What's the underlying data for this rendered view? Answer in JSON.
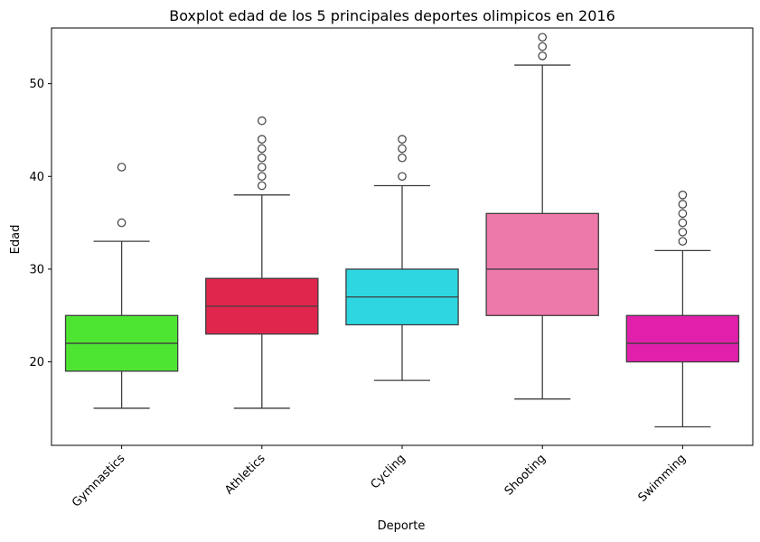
{
  "chart_data": {
    "type": "boxplot",
    "title": "Boxplot edad de los 5 principales deportes olimpicos en 2016",
    "xlabel": "Deporte",
    "ylabel": "Edad",
    "ylim": [
      11,
      56
    ],
    "yticks": [
      20,
      30,
      40,
      50
    ],
    "grid": false,
    "legend": "none",
    "categories": [
      "Gymnastics",
      "Athletics",
      "Cycling",
      "Shooting",
      "Swimming"
    ],
    "series": [
      {
        "category": "Gymnastics",
        "color": "#4ee532",
        "whisker_low": 15,
        "q1": 19,
        "median": 22,
        "q3": 25,
        "whisker_high": 33,
        "outliers": [
          35,
          41
        ]
      },
      {
        "category": "Athletics",
        "color": "#e1264d",
        "whisker_low": 15,
        "q1": 23,
        "median": 26,
        "q3": 29,
        "whisker_high": 38,
        "outliers": [
          39,
          40,
          41,
          42,
          43,
          44,
          46
        ]
      },
      {
        "category": "Cycling",
        "color": "#2dd6e0",
        "whisker_low": 18,
        "q1": 24,
        "median": 27,
        "q3": 30,
        "whisker_high": 39,
        "outliers": [
          40,
          42,
          43,
          44
        ]
      },
      {
        "category": "Shooting",
        "color": "#ed78aa",
        "whisker_low": 16,
        "q1": 25,
        "median": 30,
        "q3": 36,
        "whisker_high": 52,
        "outliers": [
          53,
          54,
          55
        ]
      },
      {
        "category": "Swimming",
        "color": "#e01faa",
        "whisker_low": 13,
        "q1": 20,
        "median": 22,
        "q3": 25,
        "whisker_high": 32,
        "outliers": [
          33,
          34,
          35,
          36,
          37,
          38
        ]
      }
    ]
  }
}
